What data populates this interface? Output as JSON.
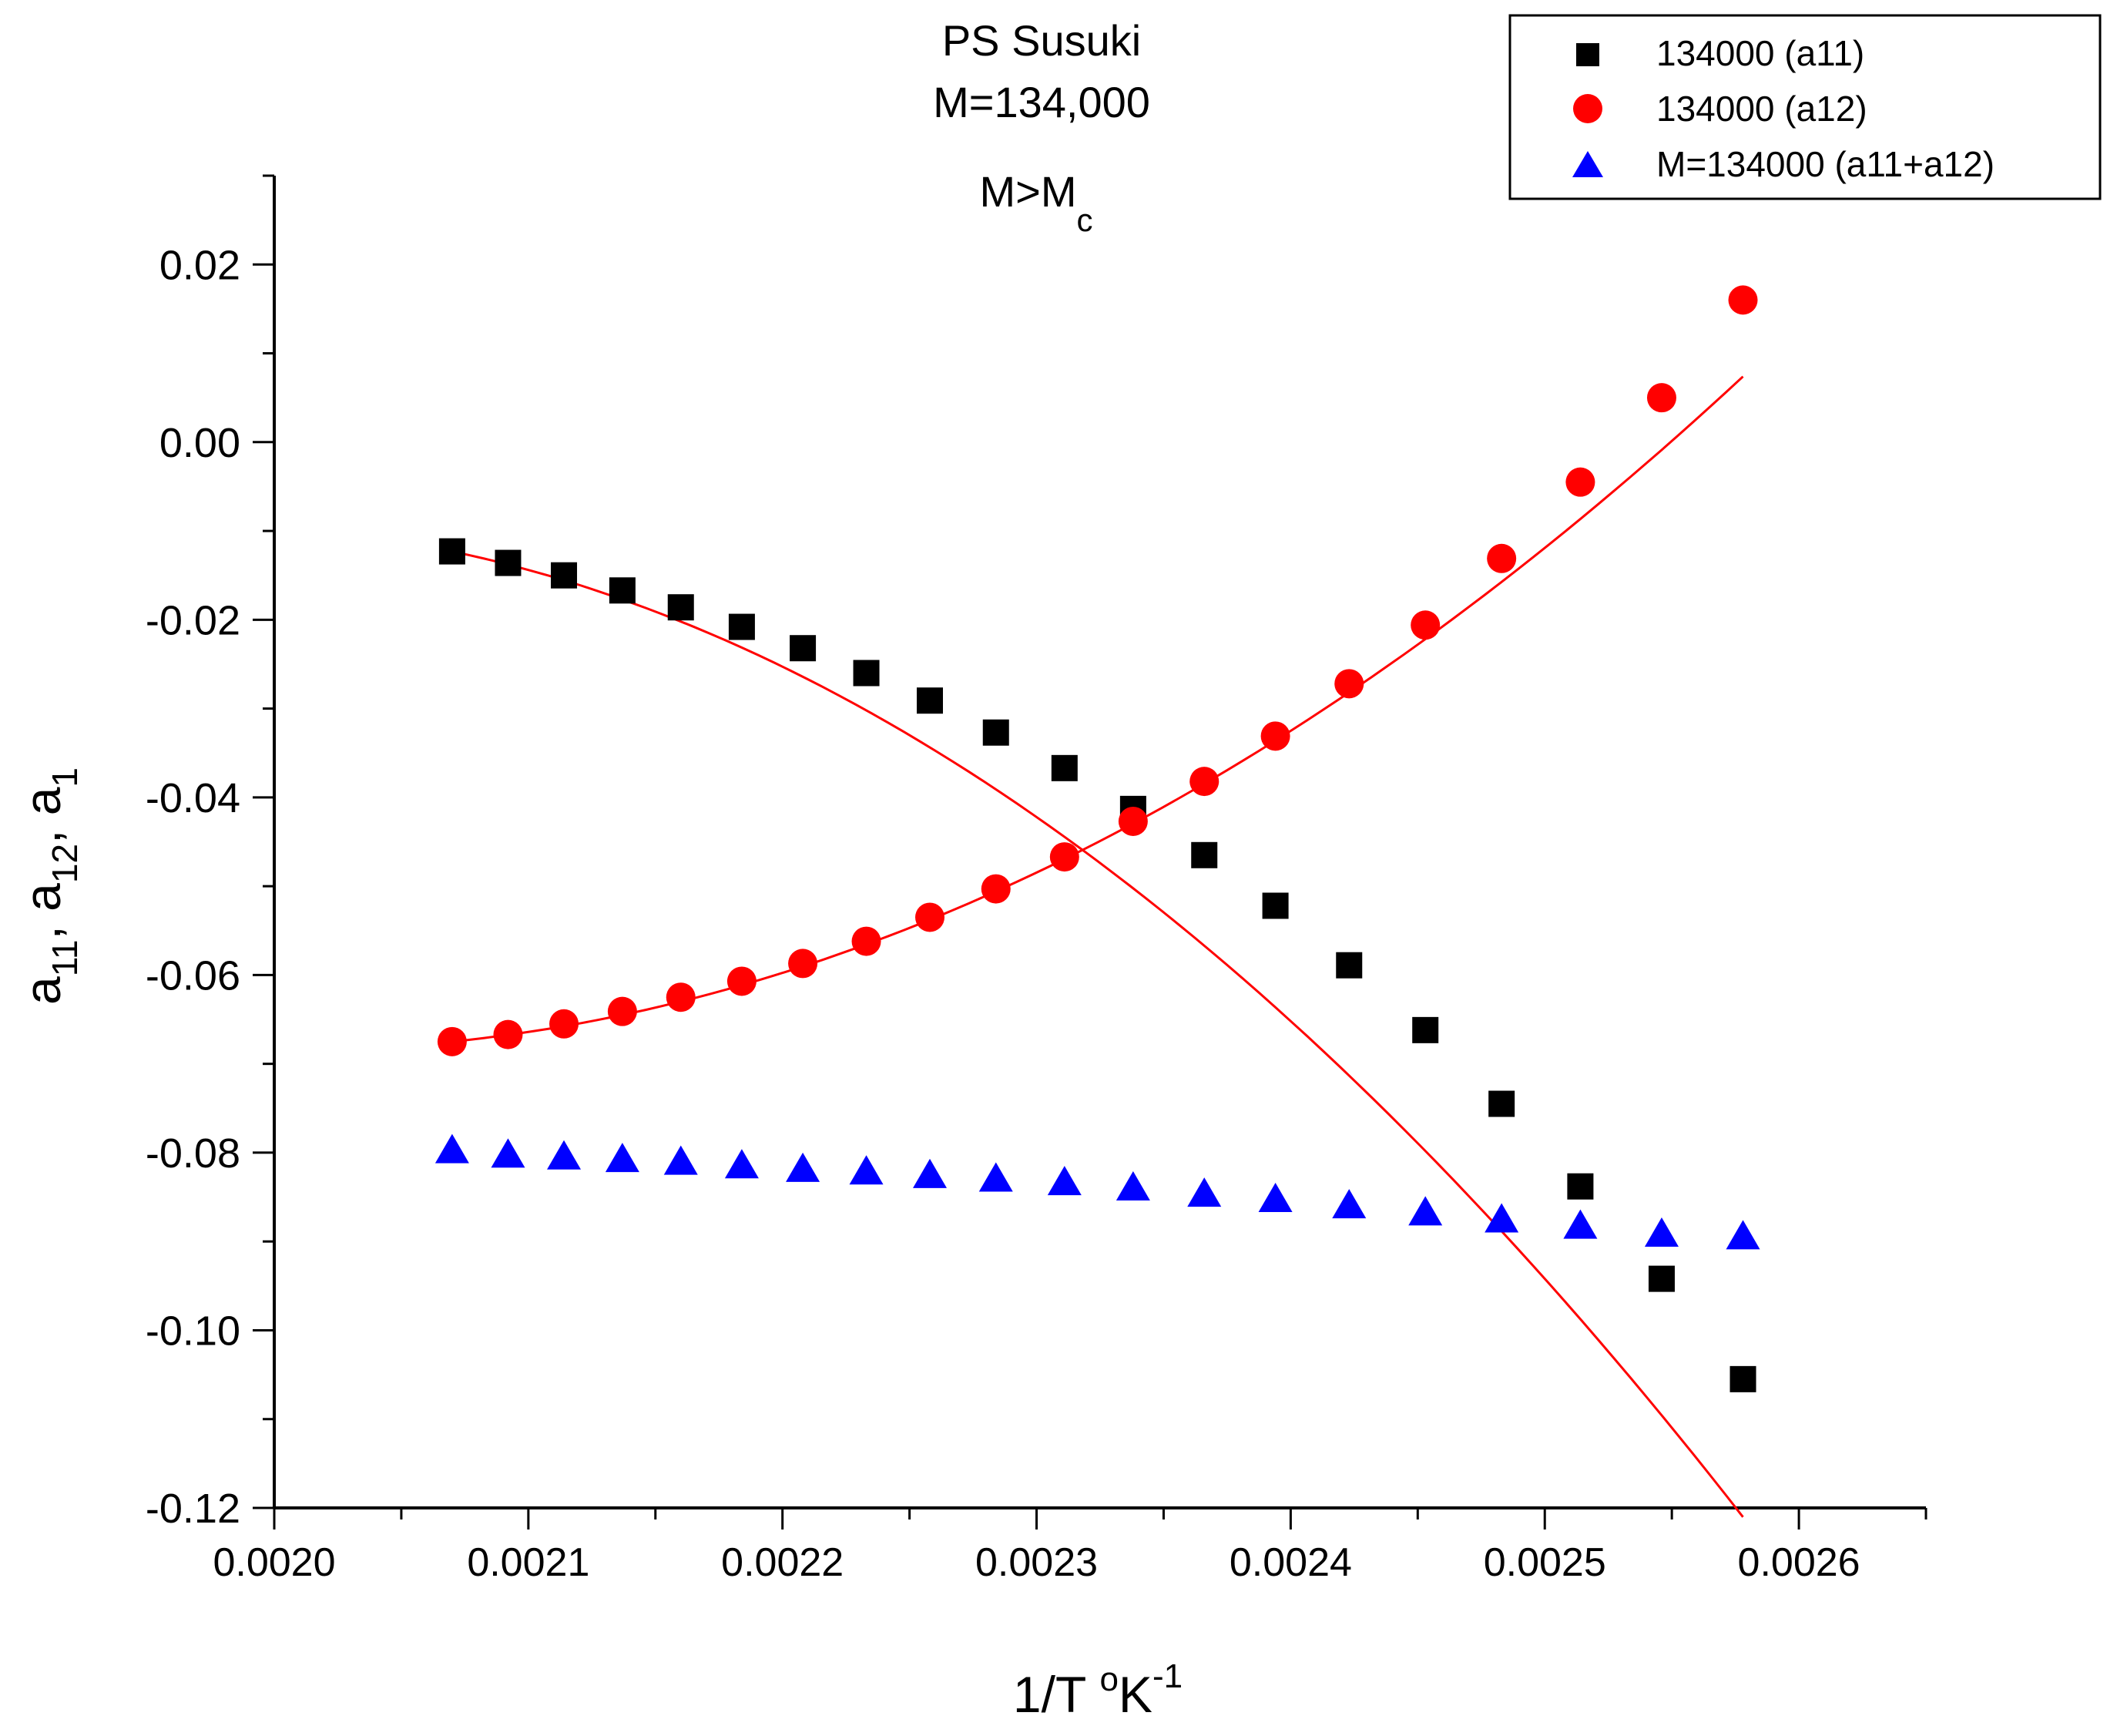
{
  "chart_data": {
    "type": "scatter",
    "title_lines": [
      "PS Susuki",
      "M=134,000"
    ],
    "annotation": {
      "main": "M>M",
      "sub": "c"
    },
    "xlabel": {
      "main": "1/T ",
      "sup1": "o",
      "mid": "K",
      "sup2": "-1"
    },
    "ylabel": {
      "parts": [
        "a",
        "11",
        ", a",
        "12",
        ", a",
        "1"
      ]
    },
    "xlim": [
      0.002,
      0.00265
    ],
    "ylim": [
      -0.12,
      0.03
    ],
    "x_ticks": [
      0.002,
      0.0021,
      0.0022,
      0.0023,
      0.0024,
      0.0025,
      0.0026
    ],
    "x_tick_labels": [
      "0.0020",
      "0.0021",
      "0.0022",
      "0.0023",
      "0.0024",
      "0.0025",
      "0.0026"
    ],
    "y_ticks": [
      -0.12,
      -0.1,
      -0.08,
      -0.06,
      -0.04,
      -0.02,
      0.0,
      0.02
    ],
    "y_tick_labels": [
      "-0.12",
      "-0.10",
      "-0.08",
      "-0.06",
      "-0.04",
      "-0.02",
      "0.00",
      "0.02"
    ],
    "x": [
      0.00207,
      0.002092,
      0.002114,
      0.002137,
      0.00216,
      0.002184,
      0.002208,
      0.002233,
      0.002258,
      0.002284,
      0.002311,
      0.002338,
      0.002366,
      0.002394,
      0.002423,
      0.002453,
      0.002483,
      0.002514,
      0.002546,
      0.002578
    ],
    "series": [
      {
        "name": "134000 (a11)",
        "marker": "square",
        "color": "#000000",
        "values": [
          -0.0123,
          -0.0136,
          -0.015,
          -0.0167,
          -0.0186,
          -0.0208,
          -0.0232,
          -0.026,
          -0.0291,
          -0.0327,
          -0.0367,
          -0.0413,
          -0.0465,
          -0.0522,
          -0.0589,
          -0.0662,
          -0.0745,
          -0.0838,
          -0.0942,
          -0.1055
        ]
      },
      {
        "name": "134000 (a12)",
        "marker": "circle",
        "color": "#ff0000",
        "values": [
          -0.0675,
          -0.0667,
          -0.0655,
          -0.0641,
          -0.0625,
          -0.0607,
          -0.0587,
          -0.0562,
          -0.0535,
          -0.0503,
          -0.0467,
          -0.0427,
          -0.0382,
          -0.0331,
          -0.0272,
          -0.0206,
          -0.0131,
          -0.0045,
          0.005,
          0.016
        ]
      },
      {
        "name": "M=134000 (a11+a12)",
        "marker": "triangle",
        "color": "#0000ff",
        "values": [
          -0.0798,
          -0.0803,
          -0.0805,
          -0.0808,
          -0.0811,
          -0.0815,
          -0.0819,
          -0.0822,
          -0.0826,
          -0.083,
          -0.0834,
          -0.084,
          -0.0847,
          -0.0853,
          -0.086,
          -0.0868,
          -0.0876,
          -0.0883,
          -0.0892,
          -0.0895
        ]
      }
    ],
    "fit_lines": [
      {
        "series": "134000 (a11)",
        "color": "#ff0000",
        "x_range": [
          0.00207,
          0.002578
        ],
        "poly": [
          -0.0123,
          -60.6,
          -302000
        ]
      },
      {
        "series": "134000 (a12)",
        "color": "#ff0000",
        "x_range": [
          0.00207,
          0.002578
        ],
        "poly": [
          -0.0675,
          29.3,
          232500
        ]
      }
    ]
  }
}
